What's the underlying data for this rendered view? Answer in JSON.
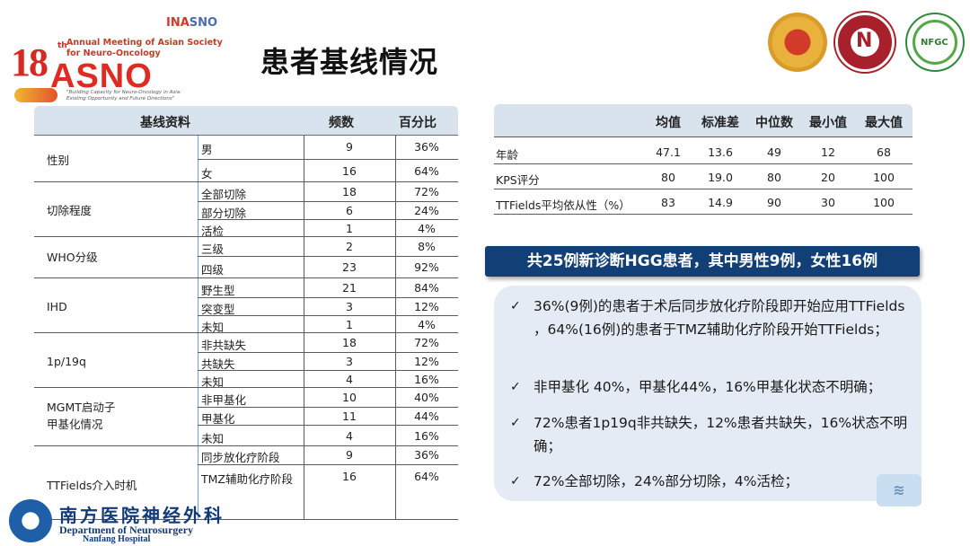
{
  "header": {
    "title": "患者基线情况",
    "conference": {
      "number": "18",
      "ordinal": "th",
      "line1": "Annual Meeting of Asian Society",
      "line2": "for Neuro-Oncology",
      "acronym": "ASNO",
      "tagline": "\"Building Capacity for Neuro-Oncology in Asia: Existing Opportunity and Future Directions\"",
      "partner_logo_a": "INA",
      "partner_logo_b": "SNO"
    },
    "emblems": [
      "hospital-emblem-icon",
      "red-cross-emblem-icon",
      "nfgc-emblem-icon"
    ],
    "nfgc_label": "NFGC"
  },
  "left_table": {
    "headers": [
      "基线资料",
      "频数",
      "百分比"
    ],
    "groups": [
      {
        "label": "性别",
        "rows": [
          {
            "sub": "男",
            "count": "9",
            "pct": "36%"
          },
          {
            "sub": "女",
            "count": "16",
            "pct": "64%"
          }
        ]
      },
      {
        "label": "切除程度",
        "rows": [
          {
            "sub": "全部切除",
            "count": "18",
            "pct": "72%"
          },
          {
            "sub": "部分切除",
            "count": "6",
            "pct": "24%"
          },
          {
            "sub": "活检",
            "count": "1",
            "pct": "4%"
          }
        ]
      },
      {
        "label": "WHO分级",
        "rows": [
          {
            "sub": "三级",
            "count": "2",
            "pct": "8%"
          },
          {
            "sub": "四级",
            "count": "23",
            "pct": "92%"
          }
        ]
      },
      {
        "label": "IHD",
        "rows": [
          {
            "sub": "野生型",
            "count": "21",
            "pct": "84%"
          },
          {
            "sub": "突变型",
            "count": "3",
            "pct": "12%"
          },
          {
            "sub": "未知",
            "count": "1",
            "pct": "4%"
          }
        ]
      },
      {
        "label": "1p/19q",
        "rows": [
          {
            "sub": "非共缺失",
            "count": "18",
            "pct": "72%"
          },
          {
            "sub": "共缺失",
            "count": "3",
            "pct": "12%"
          },
          {
            "sub": "未知",
            "count": "4",
            "pct": "16%"
          }
        ]
      },
      {
        "label": "MGMT启动子",
        "label2": "甲基化情况",
        "rows": [
          {
            "sub": "非甲基化",
            "count": "10",
            "pct": "40%"
          },
          {
            "sub": "甲基化",
            "count": "11",
            "pct": "44%"
          },
          {
            "sub": "未知",
            "count": "4",
            "pct": "16%"
          }
        ]
      },
      {
        "label": "TTFields介入时机",
        "rows": [
          {
            "sub": "同步放化疗阶段",
            "count": "9",
            "pct": "36%"
          },
          {
            "sub": "TMZ辅助化疗阶段",
            "count": "16",
            "pct": "64%"
          }
        ]
      }
    ]
  },
  "right_table": {
    "headers": [
      "均值",
      "标准差",
      "中位数",
      "最小值",
      "最大值"
    ],
    "rows": [
      {
        "label": "年龄",
        "values": [
          "47.1",
          "13.6",
          "49",
          "12",
          "68"
        ]
      },
      {
        "label": "KPS评分",
        "values": [
          "80",
          "19.0",
          "80",
          "20",
          "100"
        ]
      },
      {
        "label": "TTFields平均依从性（%）",
        "values": [
          "83",
          "14.9",
          "90",
          "30",
          "100"
        ]
      }
    ]
  },
  "banner": "共25例新诊断HGG患者，其中男性9例，女性16例",
  "bullets": [
    "36%(9例)的患者于术后同步放化疗阶段即开始应用TTFields ，64%(16例)的患者于TMZ辅助化疗阶段开始TTFields；",
    "非甲基化 40%，甲基化44%，16%甲基化状态不明确；",
    " 72%患者1p19q非共缺失，12%患者共缺失，16%状态不明确；",
    "72%全部切除，24%部分切除，4%活检；"
  ],
  "check_icon": "✓",
  "footer": {
    "cn": "南方医院神经外科",
    "en1": "Department of Neurosurgery",
    "en2": "Nanfang Hospital"
  }
}
